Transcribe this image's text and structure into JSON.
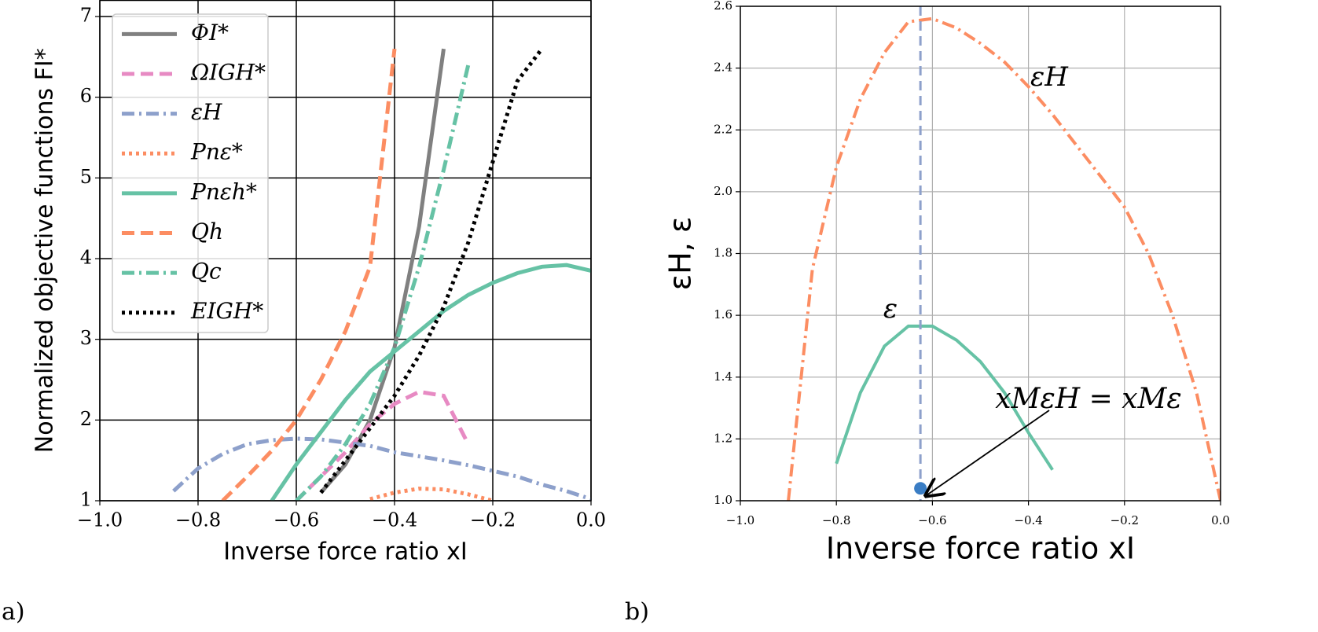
{
  "chart_data": [
    {
      "type": "line",
      "panel_label": "a)",
      "xlabel": "Inverse force ratio xI",
      "ylabel": "Normalized objective functions FI*",
      "xlim": [
        -1,
        0
      ],
      "ylim": [
        1,
        7.2
      ],
      "xticks": [
        {
          "value": -1,
          "label": "−1.0"
        },
        {
          "value": -0.8,
          "label": "−0.8"
        },
        {
          "value": -0.6,
          "label": "−0.6"
        },
        {
          "value": -0.4,
          "label": "−0.4"
        },
        {
          "value": -0.2,
          "label": "−0.2"
        },
        {
          "value": 0,
          "label": "0.0"
        }
      ],
      "yticks": [
        1,
        2,
        3,
        4,
        5,
        6,
        7
      ],
      "grid": true,
      "grid_color": "#000000",
      "legend": "upper left",
      "x": [
        -1,
        -0.95,
        -0.9,
        -0.85,
        -0.8,
        -0.75,
        -0.7,
        -0.65,
        -0.6,
        -0.55,
        -0.5,
        -0.45,
        -0.4,
        -0.35,
        -0.3,
        -0.25,
        -0.2,
        -0.15,
        -0.1,
        -0.05,
        0
      ],
      "series": [
        {
          "name": "ΦI*",
          "color": "#808080",
          "dash": "solid",
          "values": [
            null,
            null,
            null,
            null,
            null,
            null,
            null,
            null,
            null,
            1.1,
            1.45,
            2.0,
            2.9,
            4.4,
            6.6,
            null,
            null,
            null,
            null,
            null,
            null
          ]
        },
        {
          "name": "ΩIGH*",
          "color": "#e78ac3",
          "dash": "dashed",
          "values": [
            null,
            null,
            null,
            null,
            null,
            null,
            null,
            null,
            1.0,
            1.3,
            1.6,
            1.95,
            2.2,
            2.35,
            2.3,
            1.7,
            null,
            null,
            null,
            null,
            null
          ]
        },
        {
          "name": "εH",
          "color": "#8da0cb",
          "dash": "dashdot",
          "values": [
            null,
            null,
            null,
            1.12,
            1.4,
            1.58,
            1.7,
            1.75,
            1.77,
            1.76,
            1.72,
            1.68,
            1.6,
            1.55,
            1.5,
            1.44,
            1.37,
            1.3,
            1.2,
            1.12,
            1.02
          ]
        },
        {
          "name": "Pnε*",
          "color": "#fc8d62",
          "dash": "dotted",
          "values": [
            null,
            null,
            null,
            null,
            null,
            null,
            null,
            null,
            null,
            null,
            null,
            1.02,
            1.1,
            1.15,
            1.14,
            1.08,
            1.0,
            null,
            null,
            null,
            null
          ]
        },
        {
          "name": "Pnεh*",
          "color": "#66c2a5",
          "dash": "solid",
          "values": [
            null,
            null,
            null,
            null,
            null,
            null,
            null,
            1.0,
            1.45,
            1.85,
            2.25,
            2.6,
            2.85,
            3.1,
            3.35,
            3.55,
            3.7,
            3.82,
            3.9,
            3.92,
            3.85
          ]
        },
        {
          "name": "Qh",
          "color": "#fc8d62",
          "dash": "dashed",
          "values": [
            null,
            null,
            null,
            null,
            null,
            1.0,
            1.3,
            1.62,
            2.0,
            2.5,
            3.1,
            3.9,
            6.6,
            null,
            null,
            null,
            null,
            null,
            null,
            null,
            null
          ]
        },
        {
          "name": "Qc",
          "color": "#66c2a5",
          "dash": "dashdot",
          "values": [
            null,
            null,
            null,
            null,
            null,
            null,
            null,
            null,
            1.0,
            1.3,
            1.7,
            2.2,
            2.9,
            3.9,
            5.1,
            6.4,
            null,
            null,
            null,
            null,
            null
          ]
        },
        {
          "name": "EIGH*",
          "color": "#000000",
          "dash": "dotted",
          "values": [
            null,
            null,
            null,
            null,
            null,
            null,
            null,
            null,
            null,
            1.1,
            1.5,
            1.9,
            2.3,
            2.8,
            3.4,
            4.2,
            5.2,
            6.2,
            6.6,
            null,
            null
          ]
        }
      ]
    },
    {
      "type": "line",
      "panel_label": "b)",
      "xlabel": "Inverse force ratio xI",
      "ylabel": "εH, ε",
      "xlim": [
        -1,
        0
      ],
      "ylim": [
        1,
        2.6
      ],
      "xticks": [
        {
          "value": -1,
          "label": "−1.0"
        },
        {
          "value": -0.8,
          "label": "−0.8"
        },
        {
          "value": -0.6,
          "label": "−0.6"
        },
        {
          "value": -0.4,
          "label": "−0.4"
        },
        {
          "value": -0.2,
          "label": "−0.2"
        },
        {
          "value": 0,
          "label": "0.0"
        }
      ],
      "yticks": [
        {
          "value": 1,
          "label": "1.0"
        },
        1.2,
        1.4,
        1.6,
        1.8,
        {
          "value": 2,
          "label": "2.0"
        },
        2.2,
        2.4,
        2.6
      ],
      "grid": true,
      "grid_color": "#b0b0b0",
      "x": [
        -1,
        -0.95,
        -0.9,
        -0.85,
        -0.8,
        -0.75,
        -0.7,
        -0.65,
        -0.6,
        -0.55,
        -0.5,
        -0.45,
        -0.4,
        -0.35,
        -0.3,
        -0.25,
        -0.2,
        -0.15,
        -0.1,
        -0.05,
        0
      ],
      "series": [
        {
          "name": "εH",
          "color": "#fc8d62",
          "dash": "dashdot",
          "values": [
            null,
            null,
            1.0,
            1.75,
            2.08,
            2.3,
            2.45,
            2.55,
            2.56,
            2.53,
            2.48,
            2.42,
            2.34,
            2.25,
            2.15,
            2.05,
            1.95,
            1.8,
            1.6,
            1.35,
            1.0
          ]
        },
        {
          "name": "ε",
          "color": "#66c2a5",
          "dash": "solid",
          "values": [
            null,
            null,
            null,
            null,
            1.12,
            1.35,
            1.5,
            1.565,
            1.565,
            1.52,
            1.45,
            1.35,
            1.22,
            1.1,
            null,
            null,
            null,
            null,
            null,
            null,
            null
          ]
        }
      ],
      "vline": {
        "x": -0.625,
        "color": "#8da0cb"
      },
      "point": {
        "x": -0.625,
        "y": 1.04,
        "color": "#3a7dc4"
      },
      "annotation": "xMεH = xMε"
    }
  ]
}
